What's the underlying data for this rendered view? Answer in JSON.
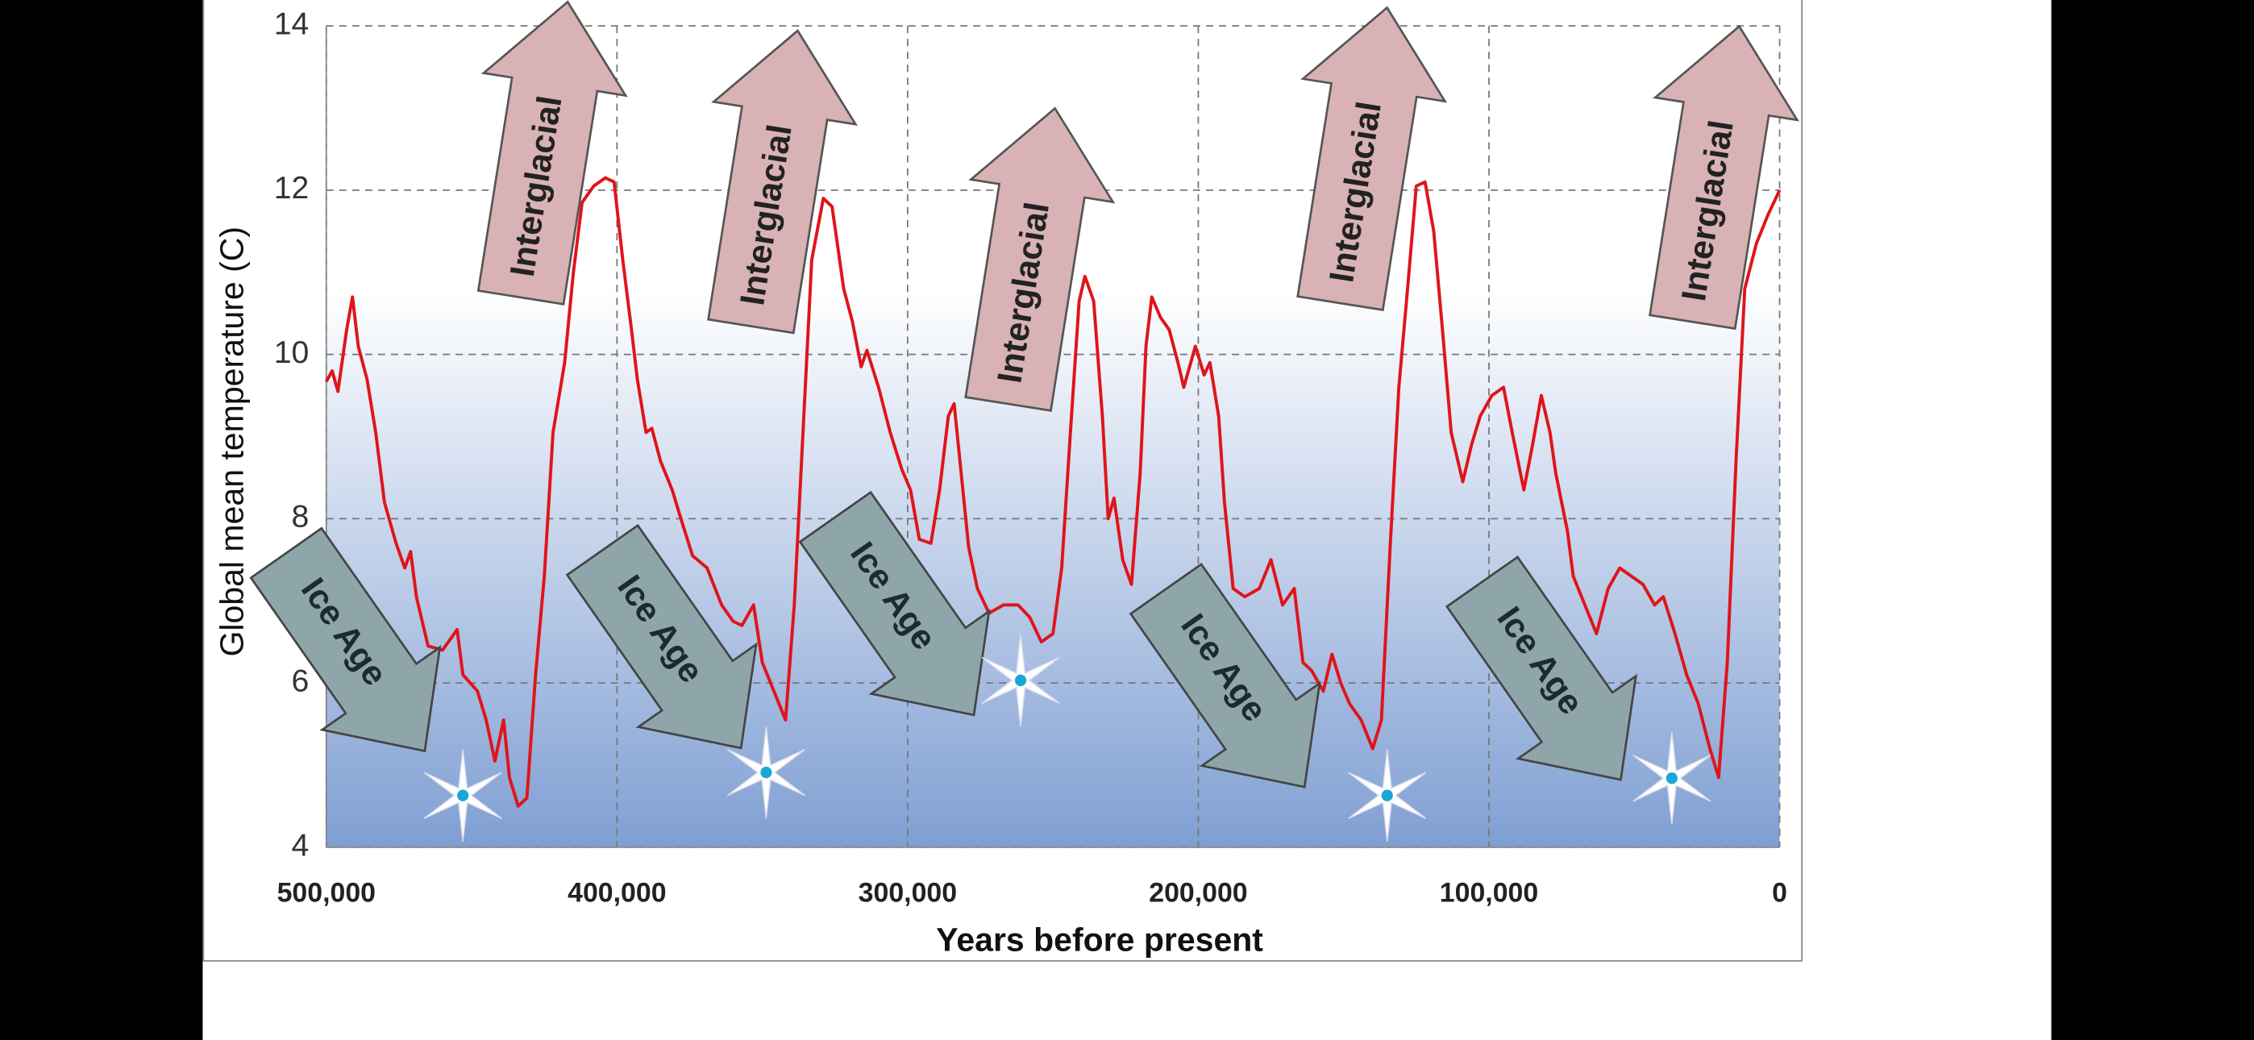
{
  "chart_data": {
    "type": "line",
    "xlabel": "Years before present",
    "ylabel": "Global mean temperature (C)",
    "xlim": [
      500000,
      0
    ],
    "ylim": [
      4,
      14
    ],
    "xticks": [
      {
        "value": 500000,
        "label": "500,000"
      },
      {
        "value": 400000,
        "label": "400,000"
      },
      {
        "value": 300000,
        "label": "300,000"
      },
      {
        "value": 200000,
        "label": "200,000"
      },
      {
        "value": 100000,
        "label": "100,000"
      },
      0
    ],
    "yticks": [
      4,
      6,
      8,
      10,
      12,
      14
    ],
    "grid": true,
    "annotations": [
      "Interglacial",
      "Interglacial",
      "Interglacial",
      "Interglacial",
      "Interglacial",
      "Ice Age",
      "Ice Age",
      "Ice Age",
      "Ice Age",
      "Ice Age"
    ],
    "series": [
      {
        "color": "#e0141a",
        "x": [
          500000,
          498000,
          496000,
          493000,
          491000,
          489000,
          486000,
          483000,
          480000,
          476000,
          473000,
          471000,
          469000,
          465000,
          460000,
          455000,
          453000,
          448000,
          445000,
          442000,
          439000,
          437000,
          434000,
          431000,
          428000,
          425000,
          422000,
          418000,
          415000,
          412000,
          408000,
          404000,
          401000,
          398000,
          395000,
          393000,
          390000,
          388000,
          385000,
          381000,
          378000,
          374000,
          369000,
          364000,
          360000,
          357000,
          353000,
          350000,
          346000,
          342000,
          339000,
          336000,
          333000,
          329000,
          326000,
          322000,
          319000,
          316000,
          314000,
          310000,
          306000,
          302000,
          299000,
          296000,
          292000,
          289000,
          286000,
          284000,
          282000,
          279000,
          276000,
          272000,
          267000,
          262000,
          258000,
          254000,
          250000,
          247000,
          244000,
          241000,
          239000,
          236000,
          233000,
          231000,
          229000,
          226000,
          223000,
          220000,
          218000,
          216000,
          213000,
          210000,
          207000,
          205000,
          201000,
          198000,
          196000,
          193000,
          191000,
          188000,
          184000,
          179000,
          175000,
          171000,
          167000,
          164000,
          161000,
          157000,
          154000,
          151000,
          148000,
          144000,
          140000,
          137000,
          134000,
          131000,
          128000,
          125000,
          122000,
          119000,
          116000,
          113000,
          109000,
          106000,
          103000,
          99000,
          95000,
          92000,
          88000,
          85000,
          82000,
          79000,
          77000,
          73000,
          71000,
          67000,
          63000,
          59000,
          55000,
          51000,
          47000,
          43000,
          40000,
          36000,
          32000,
          28000,
          24000,
          21000,
          18000,
          15000,
          12000,
          8000,
          4000,
          0
        ],
        "values": [
          9.67,
          9.8,
          9.55,
          10.3,
          10.7,
          10.1,
          9.7,
          9.05,
          8.2,
          7.7,
          7.4,
          7.6,
          7.05,
          6.45,
          6.4,
          6.65,
          6.1,
          5.9,
          5.55,
          5.05,
          5.55,
          4.85,
          4.5,
          4.6,
          6.1,
          7.3,
          9.05,
          9.9,
          11.0,
          11.85,
          12.05,
          12.15,
          12.1,
          11.15,
          10.3,
          9.7,
          9.05,
          9.1,
          8.7,
          8.35,
          8.0,
          7.55,
          7.4,
          6.95,
          6.75,
          6.7,
          6.95,
          6.25,
          5.9,
          5.55,
          6.95,
          9.05,
          11.15,
          11.9,
          11.8,
          10.8,
          10.4,
          9.85,
          10.05,
          9.6,
          9.05,
          8.6,
          8.35,
          7.75,
          7.7,
          8.35,
          9.25,
          9.4,
          8.7,
          7.65,
          7.15,
          6.85,
          6.95,
          6.95,
          6.8,
          6.5,
          6.6,
          7.4,
          9.05,
          10.65,
          10.95,
          10.65,
          9.25,
          8.0,
          8.25,
          7.5,
          7.2,
          8.55,
          10.1,
          10.7,
          10.45,
          10.3,
          9.9,
          9.6,
          10.1,
          9.75,
          9.9,
          9.25,
          8.2,
          7.15,
          7.05,
          7.15,
          7.5,
          6.95,
          7.15,
          6.25,
          6.15,
          5.9,
          6.35,
          6.0,
          5.75,
          5.55,
          5.2,
          5.55,
          7.65,
          9.6,
          10.8,
          12.05,
          12.1,
          11.5,
          10.3,
          9.05,
          8.45,
          8.9,
          9.25,
          9.5,
          9.6,
          9.05,
          8.35,
          8.9,
          9.5,
          9.05,
          8.55,
          7.85,
          7.3,
          6.95,
          6.6,
          7.15,
          7.4,
          7.3,
          7.2,
          6.95,
          7.05,
          6.6,
          6.1,
          5.75,
          5.2,
          4.85,
          6.25,
          8.7,
          10.8,
          11.35,
          11.7,
          12.0
        ]
      }
    ]
  }
}
